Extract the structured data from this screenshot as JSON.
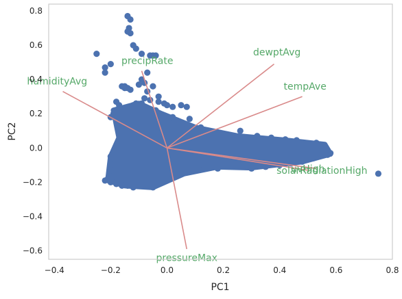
{
  "chart_data": {
    "type": "scatter",
    "title": "",
    "xlabel": "PC1",
    "ylabel": "PC2",
    "xlim": [
      -0.42,
      0.8
    ],
    "ylim": [
      -0.65,
      0.84
    ],
    "x_ticks": [
      {
        "value": -0.4,
        "label": "−0.4"
      },
      {
        "value": -0.2,
        "label": "−0.2"
      },
      {
        "value": 0.0,
        "label": "0.0"
      },
      {
        "value": 0.2,
        "label": "0.2"
      },
      {
        "value": 0.4,
        "label": "0.4"
      },
      {
        "value": 0.6,
        "label": "0.6"
      },
      {
        "value": 0.8,
        "label": "0.8"
      }
    ],
    "y_ticks": [
      {
        "value": -0.6,
        "label": "−0.6"
      },
      {
        "value": -0.4,
        "label": "−0.4"
      },
      {
        "value": -0.2,
        "label": "−0.2"
      },
      {
        "value": 0.0,
        "label": "0.0"
      },
      {
        "value": 0.2,
        "label": "0.2"
      },
      {
        "value": 0.4,
        "label": "0.4"
      },
      {
        "value": 0.6,
        "label": "0.6"
      },
      {
        "value": 0.8,
        "label": "0.8"
      }
    ],
    "grid": false,
    "colors": {
      "points": "#4c72b0",
      "vectors": "#d98a8a",
      "labels": "#55a868",
      "axes": "#cccccc"
    },
    "points": [
      [
        -0.14,
        0.77
      ],
      [
        -0.13,
        0.75
      ],
      [
        -0.135,
        0.7
      ],
      [
        -0.14,
        0.68
      ],
      [
        -0.13,
        0.67
      ],
      [
        -0.12,
        0.6
      ],
      [
        -0.11,
        0.58
      ],
      [
        -0.09,
        0.55
      ],
      [
        -0.06,
        0.54
      ],
      [
        -0.05,
        0.54
      ],
      [
        -0.04,
        0.54
      ],
      [
        -0.25,
        0.55
      ],
      [
        -0.22,
        0.47
      ],
      [
        -0.22,
        0.44
      ],
      [
        -0.2,
        0.49
      ],
      [
        -0.07,
        0.44
      ],
      [
        -0.09,
        0.4
      ],
      [
        -0.08,
        0.38
      ],
      [
        -0.1,
        0.37
      ],
      [
        -0.07,
        0.33
      ],
      [
        -0.05,
        0.36
      ],
      [
        -0.15,
        0.36
      ],
      [
        -0.15,
        0.35
      ],
      [
        -0.16,
        0.36
      ],
      [
        -0.14,
        0.35
      ],
      [
        -0.13,
        0.34
      ],
      [
        -0.08,
        0.29
      ],
      [
        -0.06,
        0.28
      ],
      [
        -0.03,
        0.3
      ],
      [
        -0.03,
        0.27
      ],
      [
        -0.01,
        0.26
      ],
      [
        0.0,
        0.25
      ],
      [
        0.02,
        0.24
      ],
      [
        0.05,
        0.25
      ],
      [
        0.07,
        0.24
      ],
      [
        -0.18,
        0.27
      ],
      [
        -0.17,
        0.25
      ],
      [
        -0.17,
        0.23
      ],
      [
        -0.15,
        0.22
      ],
      [
        -0.12,
        0.25
      ],
      [
        -0.11,
        0.26
      ],
      [
        -0.09,
        0.26
      ],
      [
        -0.19,
        0.2
      ],
      [
        -0.2,
        0.18
      ],
      [
        -0.18,
        0.16
      ],
      [
        -0.17,
        0.12
      ],
      [
        -0.17,
        0.08
      ],
      [
        -0.16,
        0.05
      ],
      [
        -0.15,
        0.03
      ],
      [
        -0.08,
        0.2
      ],
      [
        -0.04,
        0.22
      ],
      [
        0.02,
        0.18
      ],
      [
        0.08,
        0.17
      ],
      [
        0.12,
        0.12
      ],
      [
        0.18,
        0.09
      ],
      [
        0.22,
        0.06
      ],
      [
        0.12,
        0.09
      ],
      [
        0.2,
        0.08
      ],
      [
        0.25,
        0.06
      ],
      [
        0.3,
        0.05
      ],
      [
        0.35,
        0.04
      ],
      [
        0.4,
        0.035
      ],
      [
        0.45,
        0.03
      ],
      [
        0.47,
        0.02
      ],
      [
        0.5,
        0.01
      ],
      [
        0.52,
        0.0
      ],
      [
        0.55,
        -0.02
      ],
      [
        0.57,
        -0.04
      ],
      [
        0.52,
        -0.06
      ],
      [
        0.48,
        -0.08
      ],
      [
        0.44,
        -0.09
      ],
      [
        0.4,
        -0.1
      ],
      [
        0.35,
        -0.11
      ],
      [
        0.3,
        -0.12
      ],
      [
        0.25,
        -0.09
      ],
      [
        0.2,
        -0.08
      ],
      [
        0.15,
        -0.06
      ],
      [
        0.1,
        -0.04
      ],
      [
        0.05,
        -0.02
      ],
      [
        0.0,
        0.0
      ],
      [
        -0.05,
        0.02
      ],
      [
        -0.1,
        0.05
      ],
      [
        -0.13,
        0.08
      ],
      [
        -0.12,
        0.12
      ],
      [
        -0.14,
        0.15
      ],
      [
        -0.11,
        0.18
      ],
      [
        -0.06,
        0.15
      ],
      [
        -0.02,
        0.12
      ],
      [
        0.02,
        0.08
      ],
      [
        0.06,
        0.05
      ],
      [
        0.1,
        0.03
      ],
      [
        0.15,
        0.02
      ],
      [
        0.2,
        0.01
      ],
      [
        0.25,
        0.0
      ],
      [
        0.3,
        -0.01
      ],
      [
        0.35,
        -0.02
      ],
      [
        0.4,
        -0.03
      ],
      [
        0.45,
        -0.02
      ],
      [
        0.5,
        -0.03
      ],
      [
        0.43,
        0.0
      ],
      [
        0.38,
        0.01
      ],
      [
        0.33,
        0.02
      ],
      [
        0.28,
        0.03
      ],
      [
        0.23,
        0.04
      ],
      [
        0.18,
        0.05
      ],
      [
        -0.2,
        -0.05
      ],
      [
        -0.18,
        -0.08
      ],
      [
        -0.19,
        -0.12
      ],
      [
        -0.17,
        -0.15
      ],
      [
        -0.15,
        -0.18
      ],
      [
        -0.13,
        -0.2
      ],
      [
        -0.1,
        -0.21
      ],
      [
        -0.08,
        -0.22
      ],
      [
        -0.05,
        -0.23
      ],
      [
        -0.07,
        -0.19
      ],
      [
        -0.03,
        -0.16
      ],
      [
        0.0,
        -0.12
      ],
      [
        0.04,
        -0.1
      ],
      [
        0.08,
        -0.08
      ],
      [
        0.12,
        -0.1
      ],
      [
        0.18,
        -0.12
      ],
      [
        0.06,
        -0.14
      ],
      [
        0.02,
        -0.05
      ],
      [
        -0.21,
        -0.18
      ],
      [
        -0.22,
        -0.19
      ],
      [
        -0.2,
        -0.2
      ],
      [
        -0.18,
        -0.21
      ],
      [
        -0.16,
        -0.22
      ],
      [
        -0.14,
        -0.22
      ],
      [
        -0.12,
        -0.23
      ],
      [
        -0.1,
        -0.15
      ],
      [
        -0.12,
        -0.1
      ],
      [
        -0.14,
        -0.05
      ],
      [
        -0.1,
        -0.02
      ],
      [
        -0.06,
        -0.05
      ],
      [
        -0.03,
        -0.08
      ],
      [
        0.0,
        -0.04
      ],
      [
        0.03,
        0.02
      ],
      [
        -0.08,
        0.1
      ],
      [
        -0.12,
        0.0
      ],
      [
        0.09,
        0.12
      ],
      [
        0.15,
        0.1
      ],
      [
        0.26,
        0.1
      ],
      [
        0.32,
        0.07
      ],
      [
        0.37,
        0.06
      ],
      [
        0.42,
        0.05
      ],
      [
        0.46,
        0.045
      ],
      [
        0.53,
        0.03
      ],
      [
        0.56,
        -0.01
      ],
      [
        0.58,
        -0.03
      ],
      [
        0.49,
        -0.06
      ],
      [
        0.42,
        -0.07
      ],
      [
        0.36,
        -0.08
      ],
      [
        0.28,
        -0.07
      ],
      [
        0.22,
        -0.05
      ],
      [
        0.75,
        -0.15
      ]
    ],
    "loadings": [
      {
        "name": "humidityAvg",
        "x": -0.37,
        "y": 0.33
      },
      {
        "name": "precipRate",
        "x": -0.09,
        "y": 0.45
      },
      {
        "name": "dewptAvg",
        "x": 0.38,
        "y": 0.49
      },
      {
        "name": "tempAve",
        "x": 0.48,
        "y": 0.3
      },
      {
        "name": "uvHigh",
        "x": 0.53,
        "y": -0.12
      },
      {
        "name": "solarRadiationHigh",
        "x": 0.5,
        "y": -0.13
      },
      {
        "name": "pressureMax",
        "x": 0.07,
        "y": -0.59
      }
    ]
  }
}
